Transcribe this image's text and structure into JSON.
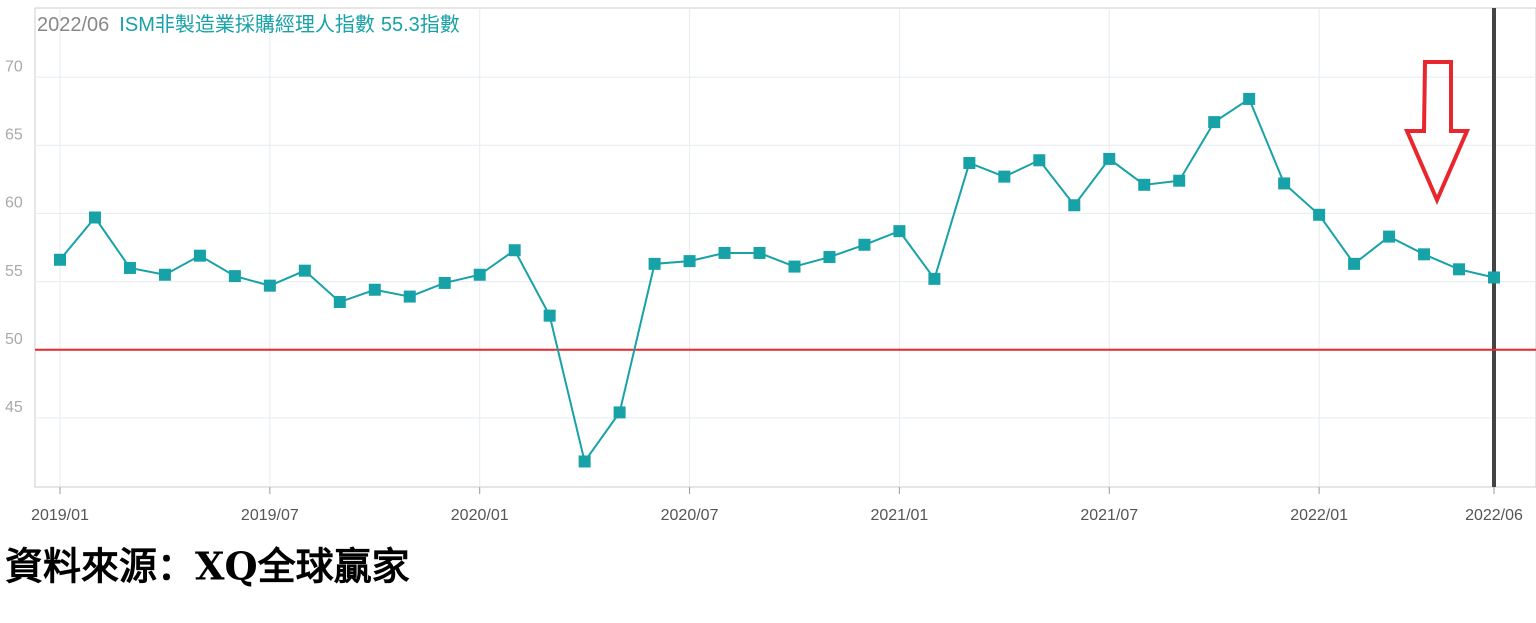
{
  "chart_data": {
    "type": "line",
    "title_date": "2022/06",
    "title_unit": "指數",
    "source": "資料來源：XQ全球贏家",
    "categories": [
      "2019/01",
      null,
      null,
      null,
      null,
      null,
      "2019/07",
      null,
      null,
      null,
      null,
      null,
      "2020/01",
      null,
      null,
      null,
      null,
      null,
      "2020/07",
      null,
      null,
      null,
      null,
      null,
      "2021/01",
      null,
      null,
      null,
      null,
      null,
      "2021/07",
      null,
      null,
      null,
      null,
      null,
      "2022/01",
      null,
      null,
      null,
      null,
      "2022/06"
    ],
    "series": [
      {
        "name": "ISM非製造業採購經理人指數",
        "color": "#17a2a8",
        "values": [
          56.6,
          59.7,
          56.0,
          55.5,
          56.9,
          55.4,
          54.7,
          55.8,
          53.5,
          54.4,
          53.9,
          54.9,
          55.5,
          57.3,
          52.5,
          41.8,
          45.4,
          56.3,
          56.5,
          57.1,
          57.1,
          56.1,
          56.8,
          57.7,
          58.7,
          55.2,
          63.7,
          62.7,
          63.9,
          60.6,
          64.0,
          62.1,
          62.4,
          66.7,
          68.4,
          62.2,
          59.9,
          56.3,
          58.3,
          57.0,
          55.9,
          55.3
        ]
      }
    ],
    "reference_line": 50,
    "reference_color": "#e8262d",
    "ylim": [
      40,
      75
    ],
    "yticks": [
      45,
      50,
      55,
      60,
      65,
      70
    ],
    "grid": true
  }
}
